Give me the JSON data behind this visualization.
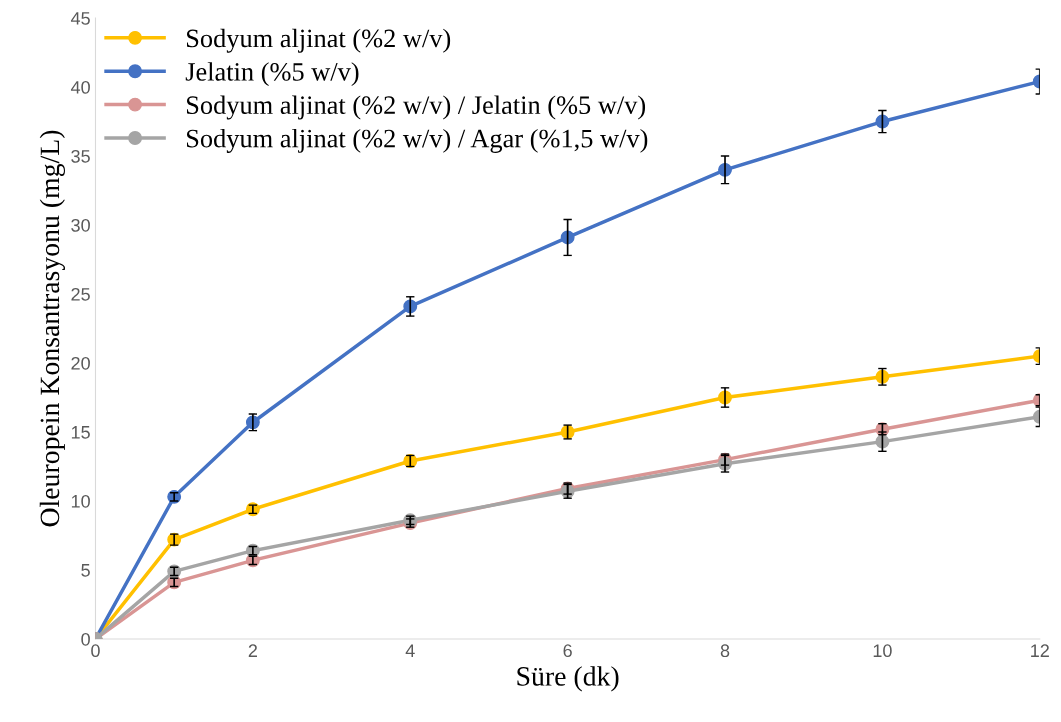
{
  "chart_data": {
    "type": "line",
    "xlabel": "Süre (dk)",
    "ylabel": "Oleuropein Konsantrasyonu (mg/L)",
    "x": [
      0,
      1,
      2,
      4,
      6,
      8,
      10,
      12
    ],
    "xlim": [
      0,
      12
    ],
    "xticks": [
      0,
      2,
      4,
      6,
      8,
      10,
      12
    ],
    "ylim": [
      0,
      45
    ],
    "yticks": [
      0,
      5,
      10,
      15,
      20,
      25,
      30,
      35,
      40,
      45
    ],
    "grid": false,
    "legend": "top left",
    "marker": "circle",
    "line_style": "solid",
    "series": [
      {
        "name": "Sodyum aljinat (%2 w/v)",
        "color": "#ffc000",
        "values": [
          0,
          7.2,
          9.4,
          12.9,
          15.0,
          17.5,
          19.0,
          20.5
        ],
        "errors": [
          null,
          0.4,
          0.3,
          0.4,
          0.5,
          0.7,
          0.6,
          0.6
        ]
      },
      {
        "name": "Jelatin (%5 w/v)",
        "color": "#4472c4",
        "values": [
          0,
          10.3,
          15.7,
          24.1,
          29.1,
          34.0,
          37.5,
          40.4
        ],
        "errors": [
          null,
          0.3,
          0.6,
          0.7,
          1.3,
          1.0,
          0.8,
          0.9
        ]
      },
      {
        "name": "Sodyum aljinat (%2 w/v) / Jelatin (%5 w/v)",
        "color": "#d99594",
        "values": [
          0,
          4.1,
          5.7,
          8.4,
          10.9,
          13.0,
          15.2,
          17.3
        ],
        "errors": [
          null,
          0.3,
          0.3,
          0.3,
          0.4,
          0.4,
          0.4,
          0.4
        ]
      },
      {
        "name": "Sodyum aljinat (%2 w/v) / Agar (%1,5 w/v)",
        "color": "#a5a5a5",
        "values": [
          0,
          4.9,
          6.4,
          8.6,
          10.7,
          12.7,
          14.3,
          16.1
        ],
        "errors": [
          null,
          0.3,
          0.3,
          0.3,
          0.5,
          0.6,
          0.7,
          0.7
        ]
      }
    ]
  }
}
